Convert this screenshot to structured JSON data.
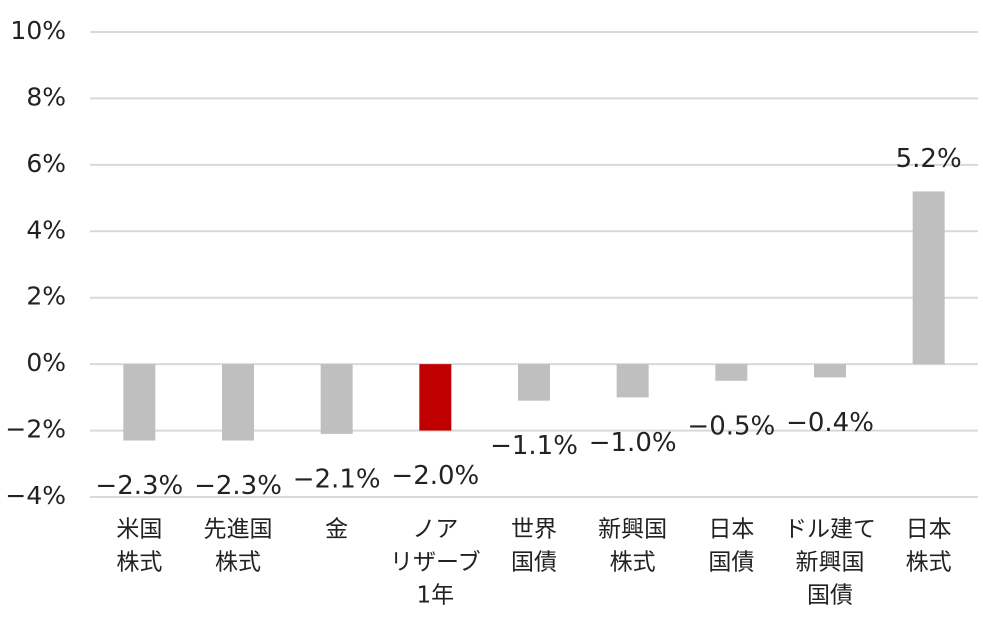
{
  "chart_data": {
    "type": "bar",
    "categories": [
      [
        "米国",
        "株式"
      ],
      [
        "先進国",
        "株式"
      ],
      [
        "金"
      ],
      [
        "ノア",
        "リザーブ",
        "1年"
      ],
      [
        "世界",
        "国債"
      ],
      [
        "新興国",
        "株式"
      ],
      [
        "日本",
        "国債"
      ],
      [
        "ドル建て",
        "新興国",
        "国債"
      ],
      [
        "日本",
        "株式"
      ]
    ],
    "values": [
      -2.3,
      -2.3,
      -2.1,
      -2.0,
      -1.1,
      -1.0,
      -0.5,
      -0.4,
      5.2
    ],
    "value_labels": [
      "−2.3%",
      "−2.3%",
      "−2.1%",
      "−2.0%",
      "−1.1%",
      "−1.0%",
      "−0.5%",
      "−0.4%",
      "5.2%"
    ],
    "colors": [
      "#bfbfbf",
      "#bfbfbf",
      "#bfbfbf",
      "#c00000",
      "#bfbfbf",
      "#bfbfbf",
      "#bfbfbf",
      "#bfbfbf",
      "#bfbfbf"
    ],
    "ylim": [
      -4,
      10
    ],
    "yticks": [
      {
        "value": -4,
        "label": "−4%"
      },
      {
        "value": -2,
        "label": "−2%"
      },
      {
        "value": 0,
        "label": "0%"
      },
      {
        "value": 2,
        "label": "2%"
      },
      {
        "value": 4,
        "label": "4%"
      },
      {
        "value": 6,
        "label": "6%"
      },
      {
        "value": 8,
        "label": "8%"
      },
      {
        "value": 10,
        "label": "10%"
      }
    ],
    "grid": true
  }
}
